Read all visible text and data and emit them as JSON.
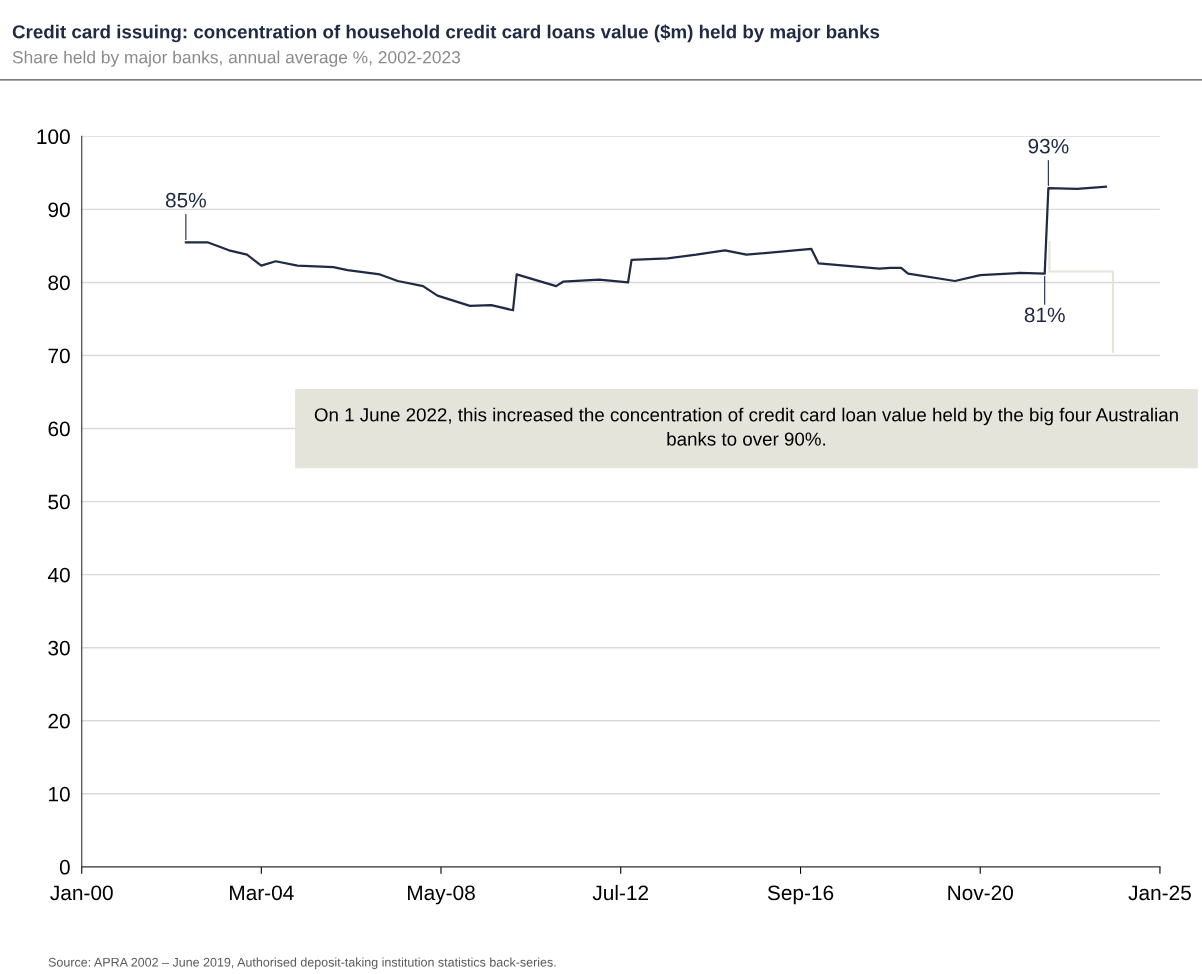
{
  "chart_data": {
    "type": "line",
    "title": "Credit card issuing: concentration of household credit card loans value ($m) held by major banks",
    "subtitle": "Share held by major banks, annual average %, 2002-2023",
    "x": [
      "2002-06",
      "2002-12",
      "2003-06",
      "2003-11",
      "2004-03",
      "2004-07",
      "2005-01",
      "2005-11",
      "2006-03",
      "2006-12",
      "2007-05",
      "2007-12",
      "2008-04",
      "2009-01",
      "2009-07",
      "2010-01",
      "2010-02",
      "2011-01",
      "2011-03",
      "2012-01",
      "2012-09",
      "2012-10",
      "2013-08",
      "2014-04",
      "2014-12",
      "2015-06",
      "2016-12",
      "2017-02",
      "2018-07",
      "2018-10",
      "2019-01",
      "2019-03",
      "2020-04",
      "2020-11",
      "2021-10",
      "2022-05",
      "2022-06",
      "2023-02",
      "2023-10"
    ],
    "series": [
      {
        "color": "#1f2a44",
        "values": [
          85.5,
          85.5,
          84.4,
          83.8,
          82.3,
          82.9,
          82.3,
          82.1,
          81.7,
          81.1,
          80.2,
          79.5,
          78.2,
          76.8,
          76.9,
          76.2,
          81.1,
          79.5,
          80.1,
          80.4,
          80.0,
          83.1,
          83.3,
          83.8,
          84.4,
          83.8,
          84.6,
          82.6,
          81.9,
          82.0,
          82.0,
          81.2,
          80.2,
          81.0,
          81.3,
          81.2,
          92.9,
          92.8,
          93.1
        ]
      }
    ],
    "xlim": [
      "2000-01",
      "2025-01"
    ],
    "xticks": [
      {
        "value": "2000-01",
        "label": "Jan-00"
      },
      {
        "value": "2004-03",
        "label": "Mar-04"
      },
      {
        "value": "2008-05",
        "label": "May-08"
      },
      {
        "value": "2012-07",
        "label": "Jul-12"
      },
      {
        "value": "2016-09",
        "label": "Sep-16"
      },
      {
        "value": "2020-11",
        "label": "Nov-20"
      },
      {
        "value": "2025-01",
        "label": "Jan-25"
      }
    ],
    "ylim": [
      0,
      100
    ],
    "yticks": [
      0,
      10,
      20,
      30,
      40,
      50,
      60,
      70,
      80,
      90,
      100
    ],
    "grid": "y",
    "annotations": [
      {
        "text": "85%",
        "x": "2002-06",
        "y": 85.5
      },
      {
        "text": "93%",
        "x": "2022-06",
        "y": 92.9
      },
      {
        "text": "81%",
        "x": "2022-05",
        "y": 81.2
      },
      "On 1 June 2022, this increased the concentration of credit card loan value held by the big four Australian banks to over 90%.",
      "Source: APRA 2002 – June 2019, Authorised deposit-taking institution statistics back-series."
    ]
  }
}
